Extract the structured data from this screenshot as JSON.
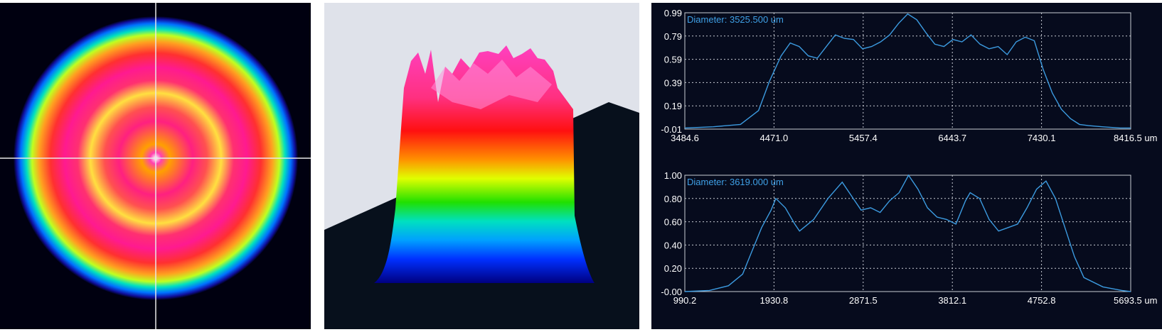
{
  "chart_data": [
    {
      "type": "line",
      "label": "Diameter: 3525.500 um",
      "x_ticks": [
        "3484.6",
        "4471.0",
        "5457.4",
        "6443.7",
        "7430.1",
        "8416.5 um"
      ],
      "y_ticks": [
        "0.99",
        "0.79",
        "0.59",
        "0.39",
        "0.19",
        "-0.01"
      ],
      "xlim": [
        3484.6,
        8416.5
      ],
      "ylim": [
        -0.01,
        0.99
      ],
      "grid": true,
      "line_color": "#3c9be0",
      "x": [
        3484.6,
        3800,
        4100,
        4300,
        4420,
        4550,
        4650,
        4750,
        4850,
        4950,
        5050,
        5150,
        5250,
        5350,
        5450,
        5550,
        5650,
        5750,
        5850,
        5950,
        6050,
        6150,
        6250,
        6350,
        6450,
        6550,
        6650,
        6750,
        6850,
        6950,
        7050,
        7150,
        7250,
        7350,
        7450,
        7550,
        7650,
        7750,
        7850,
        7950,
        8100,
        8300,
        8416.5
      ],
      "y": [
        0.0,
        0.01,
        0.03,
        0.15,
        0.4,
        0.62,
        0.73,
        0.7,
        0.62,
        0.6,
        0.7,
        0.8,
        0.77,
        0.76,
        0.68,
        0.7,
        0.74,
        0.8,
        0.9,
        0.98,
        0.93,
        0.82,
        0.72,
        0.7,
        0.76,
        0.74,
        0.8,
        0.72,
        0.68,
        0.7,
        0.63,
        0.74,
        0.78,
        0.75,
        0.5,
        0.3,
        0.16,
        0.08,
        0.03,
        0.02,
        0.01,
        0.0,
        0.0
      ]
    },
    {
      "type": "line",
      "label": "Diameter: 3619.000 um",
      "x_ticks": [
        "990.2",
        "1930.8",
        "2871.5",
        "3812.1",
        "4752.8",
        "5693.5 um"
      ],
      "y_ticks": [
        "1.00",
        "0.80",
        "0.60",
        "0.40",
        "0.20",
        "-0.00"
      ],
      "xlim": [
        990.2,
        5693.5
      ],
      "ylim": [
        0.0,
        1.0
      ],
      "grid": true,
      "line_color": "#3c9be0",
      "x": [
        990.2,
        1250,
        1450,
        1600,
        1700,
        1800,
        1900,
        1950,
        2050,
        2150,
        2200,
        2350,
        2500,
        2650,
        2750,
        2850,
        2950,
        3050,
        3150,
        3250,
        3350,
        3450,
        3550,
        3650,
        3750,
        3850,
        3950,
        4000,
        4100,
        4200,
        4300,
        4400,
        4500,
        4600,
        4700,
        4800,
        4900,
        5000,
        5100,
        5200,
        5400,
        5600,
        5693.5
      ],
      "y": [
        0.0,
        0.01,
        0.05,
        0.15,
        0.35,
        0.55,
        0.7,
        0.8,
        0.72,
        0.58,
        0.52,
        0.62,
        0.8,
        0.94,
        0.82,
        0.7,
        0.72,
        0.68,
        0.78,
        0.85,
        1.0,
        0.88,
        0.72,
        0.64,
        0.62,
        0.58,
        0.78,
        0.85,
        0.8,
        0.62,
        0.52,
        0.55,
        0.58,
        0.72,
        0.88,
        0.95,
        0.8,
        0.55,
        0.3,
        0.12,
        0.04,
        0.01,
        0.0
      ]
    }
  ]
}
